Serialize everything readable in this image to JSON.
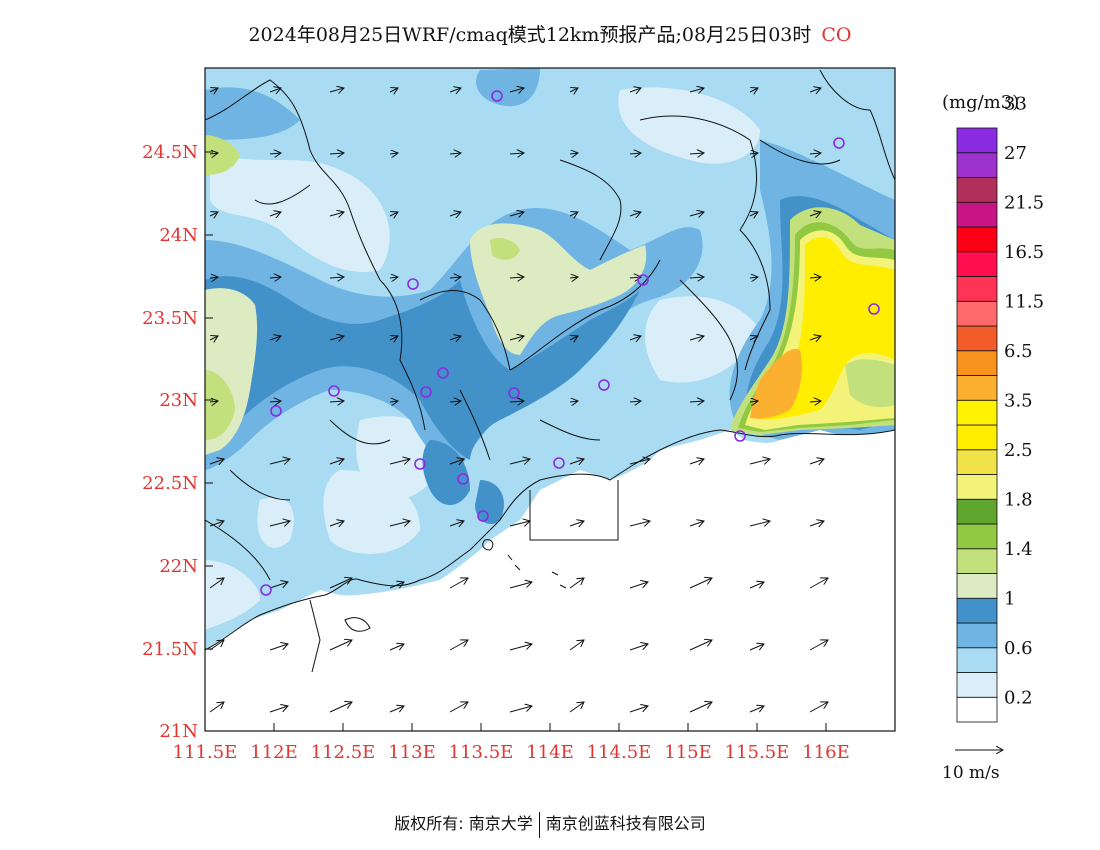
{
  "title": {
    "text": "2024年08月25日WRF/cmaq模式12km预报产品;08月25日03时",
    "species": "CO"
  },
  "map": {
    "lat_labels": [
      "24.5N",
      "24N",
      "23.5N",
      "23N",
      "22.5N",
      "22N",
      "21.5N",
      "21N"
    ],
    "lon_labels": [
      "111.5E",
      "112E",
      "112.5E",
      "113E",
      "113.5E",
      "114E",
      "114.5E",
      "115E",
      "115.5E",
      "116E"
    ],
    "label_color": "#e3342f",
    "city_marker_color": "#8a2be2"
  },
  "legend": {
    "unit": "(mg/m3)",
    "colors": [
      "#ffffff",
      "#daeef9",
      "#a9dcf3",
      "#6fb4e2",
      "#4391c9",
      "#dcebc2",
      "#c2e07c",
      "#92c942",
      "#5fa52e",
      "#f3f37a",
      "#f0e34a",
      "#ffee00",
      "#fff300",
      "#fbb02f",
      "#f7921c",
      "#f25c29",
      "#fe6a6a",
      "#ff3355",
      "#ff0f4f",
      "#fb0015",
      "#c71585",
      "#b0305a",
      "#9d32cd",
      "#8b2be2"
    ],
    "labels": [
      {
        "text": "0.2",
        "index": 1
      },
      {
        "text": "0.6",
        "index": 3
      },
      {
        "text": "1",
        "index": 5
      },
      {
        "text": "1.4",
        "index": 7
      },
      {
        "text": "1.8",
        "index": 9
      },
      {
        "text": "2.5",
        "index": 11
      },
      {
        "text": "3.5",
        "index": 13
      },
      {
        "text": "6.5",
        "index": 15
      },
      {
        "text": "11.5",
        "index": 17
      },
      {
        "text": "16.5",
        "index": 19
      },
      {
        "text": "21.5",
        "index": 21
      },
      {
        "text": "27",
        "index": 23
      },
      {
        "text": "33",
        "index": 25
      }
    ],
    "wind_ref_label": "10 m/s"
  },
  "footer": {
    "left": "版权所有: 南京大学",
    "right": "南京创蓝科技有限公司"
  }
}
